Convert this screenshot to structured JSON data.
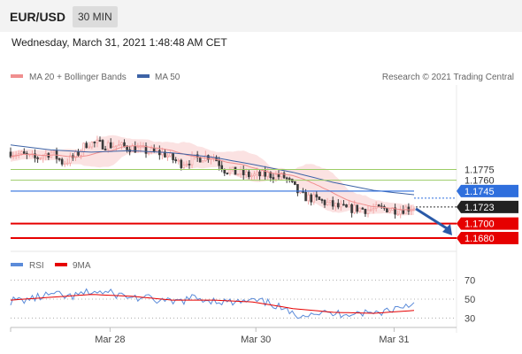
{
  "header": {
    "symbol": "EUR/USD",
    "timeframe": "30 MIN",
    "timestamp": "Wednesday, March 31, 2021 1:48:48 AM CET"
  },
  "legend": {
    "ma20_bb": "MA 20 + Bollinger Bands",
    "ma50": "MA 50",
    "credit": "Research © 2021 Trading Central",
    "rsi": "RSI",
    "ma9": "9MA"
  },
  "colors": {
    "ma20": "#f08f8f",
    "ma50": "#3d63a6",
    "band_fill": "#fbe2e2",
    "candle_up": "#f2a6a6",
    "candle_down": "#3a3a3a",
    "resistance": "#9ccc65",
    "support": "#e60000",
    "current": "#222222",
    "pivot": "#2f6fdd",
    "rsi": "#5b8bd9",
    "rsi_ma": "#e60000",
    "arrow": "#2a5aa8"
  },
  "chart_data": [
    {
      "type": "candlestick",
      "title": "EUR/USD",
      "timeframe": "30 MIN",
      "ylim": [
        1.1664,
        1.1892
      ],
      "x_ticks": [
        {
          "label": "Mar 28",
          "pos": 0.223
        },
        {
          "label": "Mar 30",
          "pos": 0.55
        },
        {
          "label": "Mar 31",
          "pos": 0.86
        }
      ],
      "series_summary": {
        "price_path": [
          {
            "t": 0.0,
            "p": 1.1799
          },
          {
            "t": 0.03,
            "p": 1.1795
          },
          {
            "t": 0.06,
            "p": 1.179
          },
          {
            "t": 0.1,
            "p": 1.1799
          },
          {
            "t": 0.13,
            "p": 1.1784
          },
          {
            "t": 0.16,
            "p": 1.1793
          },
          {
            "t": 0.19,
            "p": 1.1812
          },
          {
            "t": 0.22,
            "p": 1.181
          },
          {
            "t": 0.26,
            "p": 1.1808
          },
          {
            "t": 0.3,
            "p": 1.1805
          },
          {
            "t": 0.34,
            "p": 1.18
          },
          {
            "t": 0.38,
            "p": 1.1797
          },
          {
            "t": 0.42,
            "p": 1.1783
          },
          {
            "t": 0.46,
            "p": 1.179
          },
          {
            "t": 0.5,
            "p": 1.1795
          },
          {
            "t": 0.53,
            "p": 1.1775
          },
          {
            "t": 0.56,
            "p": 1.177
          },
          {
            "t": 0.6,
            "p": 1.1766
          },
          {
            "t": 0.64,
            "p": 1.1768
          },
          {
            "t": 0.68,
            "p": 1.1764
          },
          {
            "t": 0.7,
            "p": 1.1752
          },
          {
            "t": 0.72,
            "p": 1.1738
          },
          {
            "t": 0.76,
            "p": 1.1733
          },
          {
            "t": 0.8,
            "p": 1.1725
          },
          {
            "t": 0.83,
            "p": 1.172
          },
          {
            "t": 0.86,
            "p": 1.1721
          },
          {
            "t": 0.89,
            "p": 1.1719
          },
          {
            "t": 0.93,
            "p": 1.1721
          },
          {
            "t": 0.96,
            "p": 1.1719
          },
          {
            "t": 1.0,
            "p": 1.1723
          }
        ],
        "ma50_path": [
          {
            "t": 0.0,
            "p": 1.1809
          },
          {
            "t": 0.1,
            "p": 1.1802
          },
          {
            "t": 0.2,
            "p": 1.1799
          },
          {
            "t": 0.3,
            "p": 1.1801
          },
          {
            "t": 0.4,
            "p": 1.1798
          },
          {
            "t": 0.5,
            "p": 1.1792
          },
          {
            "t": 0.6,
            "p": 1.1782
          },
          {
            "t": 0.7,
            "p": 1.1771
          },
          {
            "t": 0.8,
            "p": 1.1757
          },
          {
            "t": 0.9,
            "p": 1.1746
          },
          {
            "t": 1.0,
            "p": 1.174
          }
        ]
      },
      "levels": [
        {
          "label": "1.1775",
          "value": 1.1775,
          "kind": "resistance"
        },
        {
          "label": "1.1760",
          "value": 1.176,
          "kind": "resistance"
        },
        {
          "label": "1.1745",
          "value": 1.1745,
          "kind": "pivot"
        },
        {
          "label": "1.1723",
          "value": 1.1723,
          "kind": "current"
        },
        {
          "label": "1.1700",
          "value": 1.17,
          "kind": "support"
        },
        {
          "label": "1.1680",
          "value": 1.168,
          "kind": "support"
        }
      ],
      "forecast_arrow": {
        "from": 1.1723,
        "to": 1.168,
        "direction": "down"
      }
    },
    {
      "type": "line",
      "title": "RSI",
      "ylim": [
        20,
        80
      ],
      "y_ticks": [
        70,
        50,
        30
      ],
      "series": [
        {
          "name": "RSI",
          "points": [
            {
              "t": 0.0,
              "v": 48
            },
            {
              "t": 0.05,
              "v": 50
            },
            {
              "t": 0.1,
              "v": 55
            },
            {
              "t": 0.15,
              "v": 52
            },
            {
              "t": 0.2,
              "v": 58
            },
            {
              "t": 0.25,
              "v": 56
            },
            {
              "t": 0.3,
              "v": 52
            },
            {
              "t": 0.35,
              "v": 50
            },
            {
              "t": 0.4,
              "v": 46
            },
            {
              "t": 0.45,
              "v": 51
            },
            {
              "t": 0.5,
              "v": 49
            },
            {
              "t": 0.55,
              "v": 46
            },
            {
              "t": 0.6,
              "v": 48
            },
            {
              "t": 0.65,
              "v": 45
            },
            {
              "t": 0.7,
              "v": 33
            },
            {
              "t": 0.75,
              "v": 36
            },
            {
              "t": 0.8,
              "v": 34
            },
            {
              "t": 0.85,
              "v": 36
            },
            {
              "t": 0.9,
              "v": 35
            },
            {
              "t": 0.95,
              "v": 40
            },
            {
              "t": 1.0,
              "v": 46
            }
          ]
        },
        {
          "name": "9MA",
          "points": [
            {
              "t": 0.0,
              "v": 49
            },
            {
              "t": 0.1,
              "v": 52
            },
            {
              "t": 0.2,
              "v": 55
            },
            {
              "t": 0.3,
              "v": 53
            },
            {
              "t": 0.4,
              "v": 49
            },
            {
              "t": 0.5,
              "v": 49
            },
            {
              "t": 0.6,
              "v": 47
            },
            {
              "t": 0.7,
              "v": 40
            },
            {
              "t": 0.8,
              "v": 36
            },
            {
              "t": 0.9,
              "v": 35
            },
            {
              "t": 1.0,
              "v": 38
            }
          ]
        }
      ]
    }
  ]
}
